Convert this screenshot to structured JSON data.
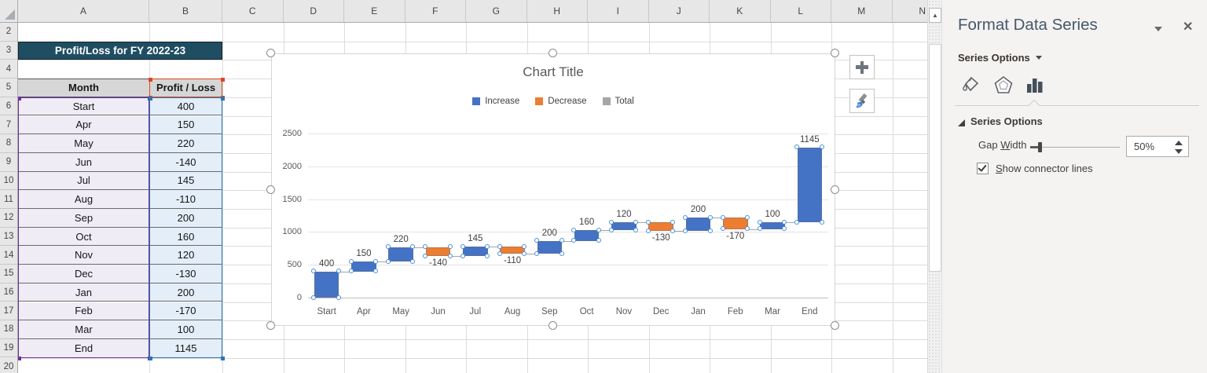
{
  "sheet": {
    "column_headers": [
      "A",
      "B",
      "C",
      "D",
      "E",
      "F",
      "G",
      "H",
      "I",
      "J",
      "K",
      "L",
      "M",
      "N"
    ],
    "row_numbers": [
      "2",
      "3",
      "4",
      "5",
      "6",
      "7",
      "8",
      "9",
      "10",
      "11",
      "12",
      "13",
      "14",
      "15",
      "16",
      "17",
      "18",
      "19",
      "20"
    ],
    "table": {
      "title": "Profit/Loss for FY 2022-23",
      "col1_header": "Month",
      "col2_header": "Profit / Loss",
      "rows": [
        [
          "Start",
          "400"
        ],
        [
          "Apr",
          "150"
        ],
        [
          "May",
          "220"
        ],
        [
          "Jun",
          "-140"
        ],
        [
          "Jul",
          "145"
        ],
        [
          "Aug",
          "-110"
        ],
        [
          "Sep",
          "200"
        ],
        [
          "Oct",
          "160"
        ],
        [
          "Nov",
          "120"
        ],
        [
          "Dec",
          "-130"
        ],
        [
          "Jan",
          "200"
        ],
        [
          "Feb",
          "-170"
        ],
        [
          "Mar",
          "100"
        ],
        [
          "End",
          "1145"
        ]
      ],
      "colors": {
        "title_bg": "#1F4E63",
        "header_bg": "#D6D6D6",
        "month_bg": "#EFECF6",
        "value_bg": "#E3EEF9",
        "category_box": "#7030A0",
        "value_box": "#2E75B6",
        "name_box": "#D9481E"
      }
    }
  },
  "chart": {
    "title": "Chart Title",
    "legend": [
      {
        "label": "Increase",
        "color": "#4472C4"
      },
      {
        "label": "Decrease",
        "color": "#ED7D31"
      },
      {
        "label": "Total",
        "color": "#A5A5A5"
      }
    ],
    "y_ticks": [
      "0",
      "500",
      "1000",
      "1500",
      "2000",
      "2500"
    ]
  },
  "chart_data": {
    "type": "bar",
    "subtype": "waterfall",
    "title": "Chart Title",
    "categories": [
      "Start",
      "Apr",
      "May",
      "Jun",
      "Jul",
      "Aug",
      "Sep",
      "Oct",
      "Nov",
      "Dec",
      "Jan",
      "Feb",
      "Mar",
      "End"
    ],
    "values": [
      400,
      150,
      220,
      -140,
      145,
      -110,
      200,
      160,
      120,
      -130,
      200,
      -170,
      100,
      1145
    ],
    "data_labels": [
      "400",
      "150",
      "220",
      "-140",
      "145",
      "-110",
      "200",
      "160",
      "120",
      "-130",
      "200",
      "-170",
      "100",
      "1145"
    ],
    "bar_spans": [
      [
        0,
        400
      ],
      [
        400,
        550
      ],
      [
        550,
        770
      ],
      [
        770,
        630
      ],
      [
        630,
        775
      ],
      [
        775,
        665
      ],
      [
        665,
        865
      ],
      [
        865,
        1025
      ],
      [
        1025,
        1145
      ],
      [
        1145,
        1015
      ],
      [
        1015,
        1215
      ],
      [
        1215,
        1045
      ],
      [
        1045,
        1145
      ],
      [
        1145,
        2290
      ]
    ],
    "series_colors": {
      "increase": "#4472C4",
      "decrease": "#ED7D31",
      "total": "#A5A5A5"
    },
    "ylim": [
      0,
      2500
    ],
    "y_tick_step": 500,
    "grid": true,
    "legend_position": "top",
    "connector_lines": true
  },
  "scrollbar": {
    "up_arrow": "▲"
  },
  "panel": {
    "title": "Format Data Series",
    "close_glyph": "✕",
    "series_options_label": "Series Options",
    "section_header": "Series Options",
    "icons": [
      "fill-line-icon",
      "effects-icon",
      "series-options-icon"
    ],
    "gap_width": {
      "pre": "Gap ",
      "key": "W",
      "post": "idth",
      "value": "50%"
    },
    "connector": {
      "pre": "",
      "key": "S",
      "post": "how connector lines",
      "checked": true
    }
  }
}
